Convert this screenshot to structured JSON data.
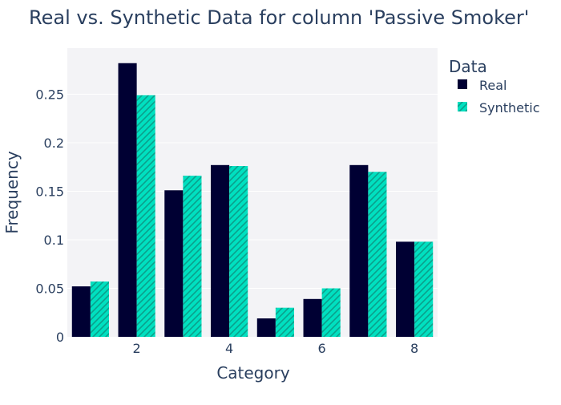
{
  "chart_data": {
    "type": "bar",
    "title": "Real vs. Synthetic Data for column 'Passive Smoker'",
    "xlabel": "Category",
    "ylabel": "Frequency",
    "categories": [
      1,
      2,
      3,
      4,
      5,
      6,
      7,
      8
    ],
    "x_ticks": [
      "2",
      "4",
      "6",
      "8"
    ],
    "y_ticks": [
      "0",
      "0.05",
      "0.1",
      "0.15",
      "0.2",
      "0.25"
    ],
    "ylim": [
      0,
      0.2975
    ],
    "xlim": [
      0.5,
      8.5
    ],
    "grid": true,
    "legend": {
      "title": "Data",
      "position": "right"
    },
    "series": [
      {
        "name": "Real",
        "color": "#000033",
        "pattern": "solid",
        "values": [
          0.052,
          0.282,
          0.151,
          0.177,
          0.019,
          0.039,
          0.177,
          0.098
        ]
      },
      {
        "name": "Synthetic",
        "color": "#00e0c0",
        "pattern": "diagonal-hatch",
        "values": [
          0.057,
          0.249,
          0.166,
          0.176,
          0.03,
          0.05,
          0.17,
          0.098
        ]
      }
    ]
  }
}
